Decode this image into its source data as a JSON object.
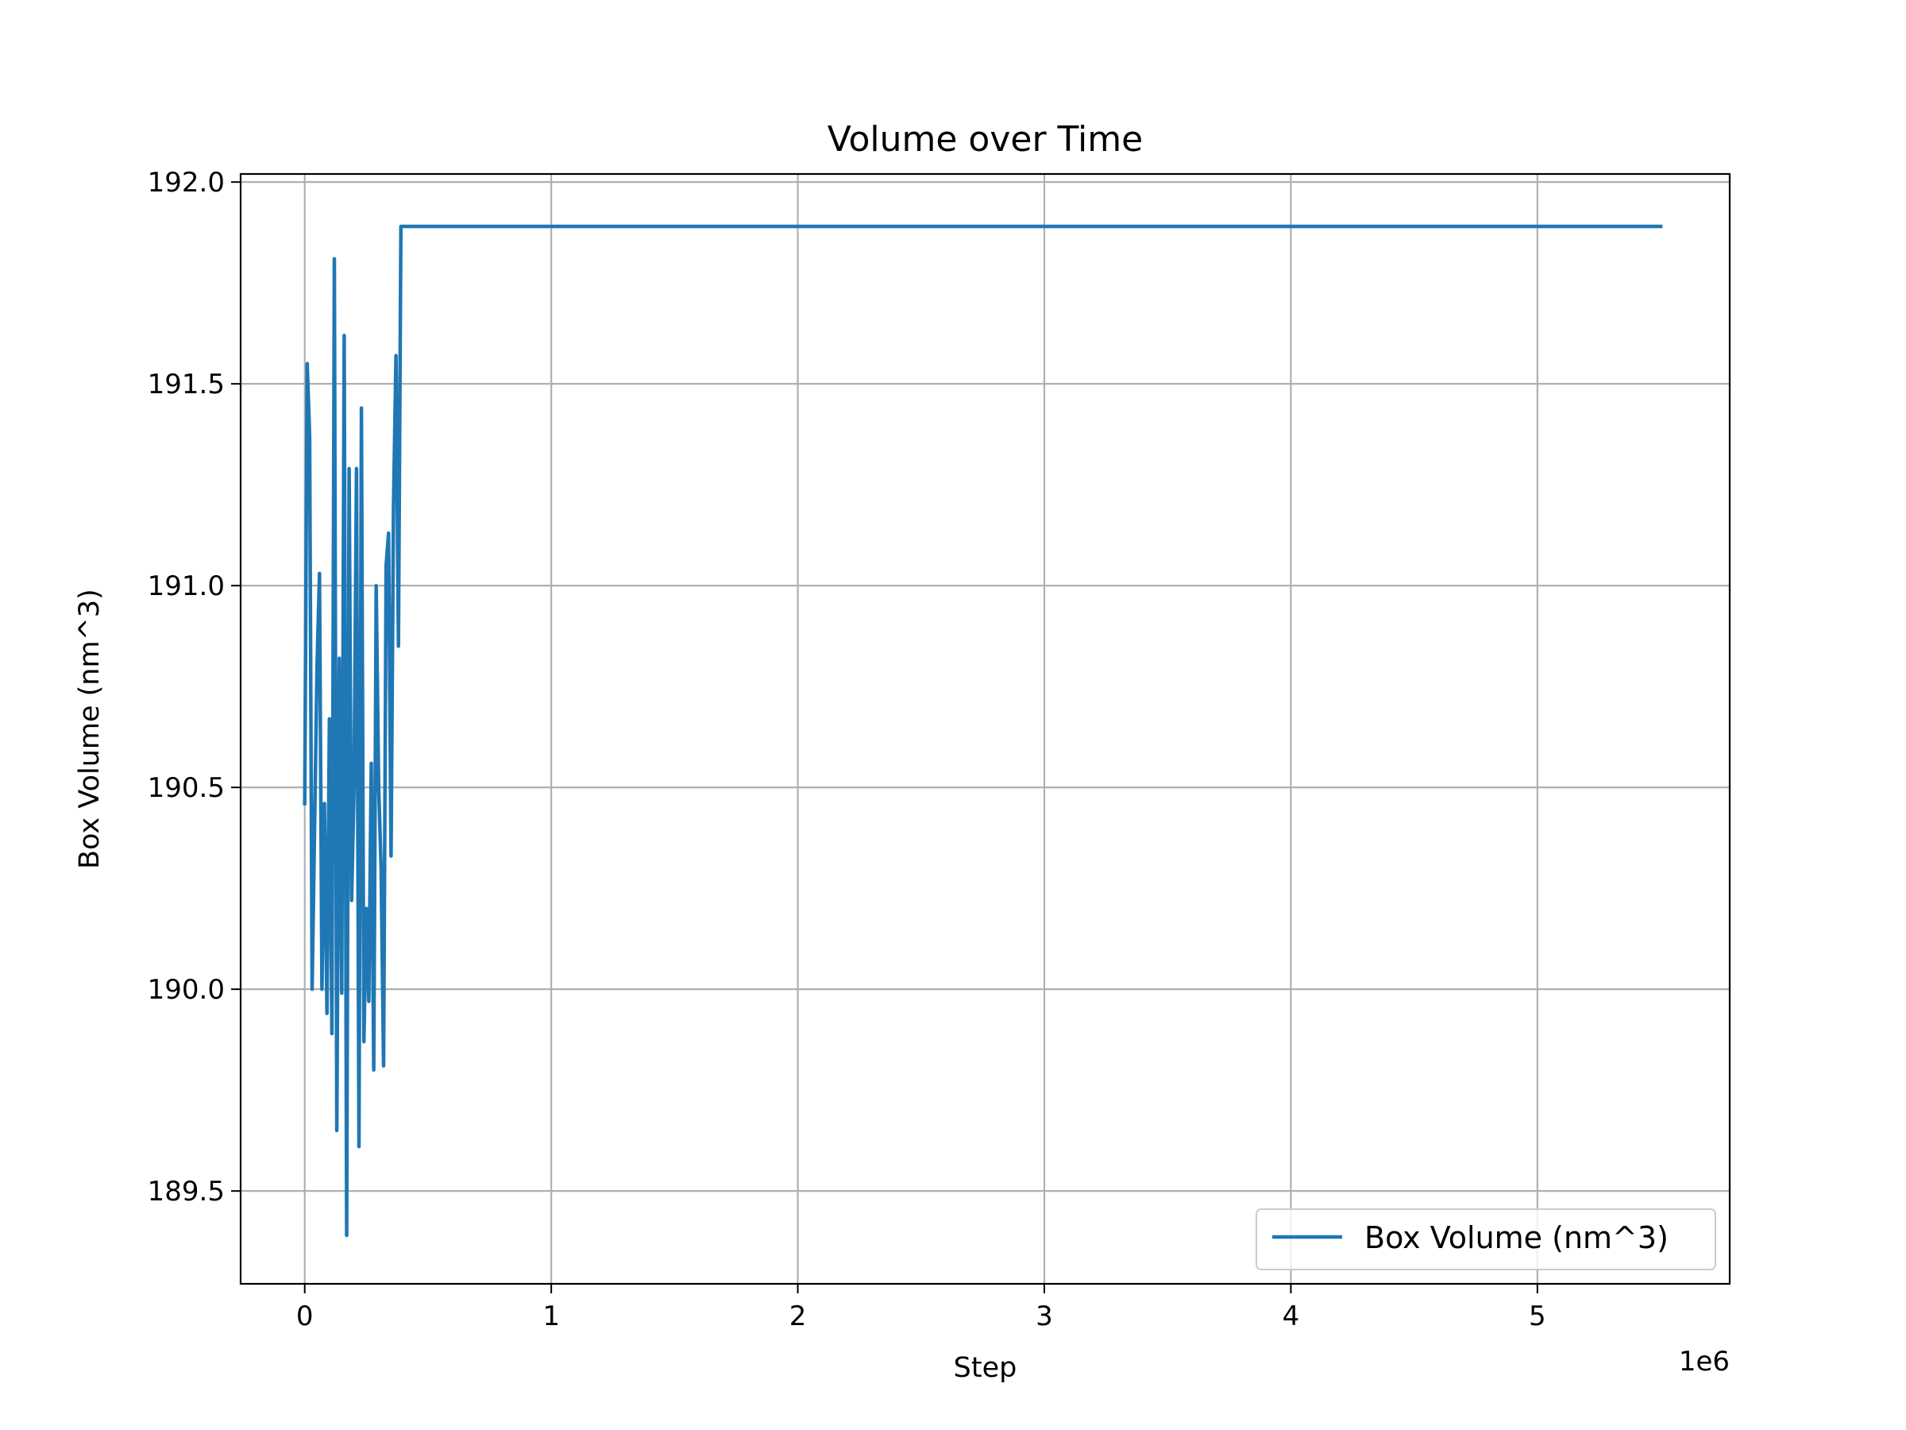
{
  "chart_data": {
    "type": "line",
    "title": "Volume over Time",
    "xlabel": "Step",
    "ylabel": "Box Volume (nm^3)",
    "x_offset_label": "1e6",
    "xlim": [
      -0.26,
      5.78
    ],
    "ylim": [
      189.27,
      192.02
    ],
    "x_ticks": [
      0,
      1,
      2,
      3,
      4,
      5
    ],
    "x_tick_labels": [
      "0",
      "1",
      "2",
      "3",
      "4",
      "5"
    ],
    "y_ticks": [
      189.5,
      190.0,
      190.5,
      191.0,
      191.5,
      192.0
    ],
    "y_tick_labels": [
      "189.5",
      "190.0",
      "190.5",
      "191.0",
      "191.5",
      "192.0"
    ],
    "grid": true,
    "legend_position": "bottom-right",
    "colors": {
      "series": "#1f77b4",
      "grid": "#b0b0b0",
      "axes": "#000000"
    },
    "series": [
      {
        "name": "Box Volume (nm^3)",
        "x": [
          0.0,
          0.01,
          0.02,
          0.03,
          0.05,
          0.06,
          0.07,
          0.08,
          0.09,
          0.1,
          0.11,
          0.12,
          0.13,
          0.14,
          0.15,
          0.16,
          0.17,
          0.18,
          0.19,
          0.2,
          0.21,
          0.22,
          0.23,
          0.24,
          0.25,
          0.26,
          0.27,
          0.28,
          0.29,
          0.3,
          0.31,
          0.32,
          0.33,
          0.34,
          0.35,
          0.36,
          0.37,
          0.38,
          0.39,
          0.4,
          0.41,
          0.42,
          0.43,
          0.44,
          0.45,
          0.46,
          0.47,
          0.48,
          0.49,
          0.5,
          1.0,
          2.0,
          3.0,
          4.0,
          5.0,
          5.5
        ],
        "y": [
          190.46,
          191.55,
          191.37,
          190.0,
          190.8,
          191.03,
          190.0,
          190.46,
          189.94,
          190.67,
          189.89,
          191.81,
          189.65,
          190.82,
          189.99,
          191.62,
          189.39,
          191.29,
          190.22,
          190.5,
          191.29,
          189.61,
          191.44,
          189.87,
          190.2,
          189.97,
          190.56,
          189.8,
          191.0,
          190.5,
          190.3,
          189.81,
          191.05,
          191.13,
          190.33,
          191.2,
          191.57,
          190.85,
          191.89,
          191.89,
          191.89,
          191.89,
          191.89,
          191.89,
          191.89,
          191.89,
          191.89,
          191.89,
          191.89,
          191.89,
          191.89,
          191.89,
          191.89,
          191.89,
          191.89,
          191.89
        ]
      }
    ]
  }
}
